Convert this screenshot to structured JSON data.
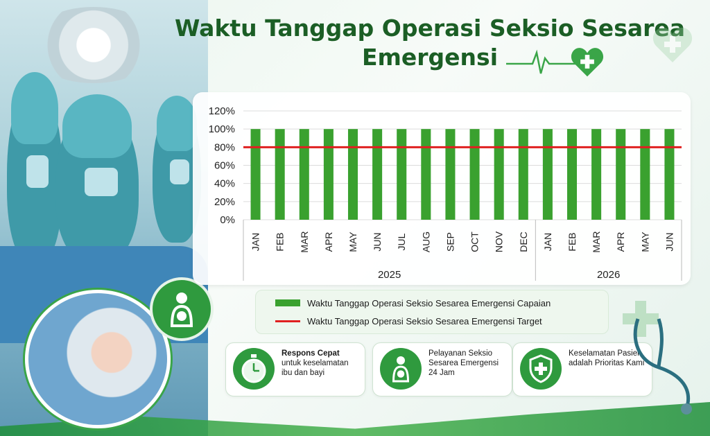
{
  "title": "Waktu Tanggap Operasi Seksio Sesarea Emergensi",
  "colors": {
    "bar": "#3aa12f",
    "target_line": "#e02020",
    "brand_green": "#2f9a3e",
    "title_green": "#1b5e25"
  },
  "icons": [
    "heart-plus-icon",
    "ekg-line-icon",
    "mother-baby-icon",
    "stopwatch-icon",
    "shield-cross-icon",
    "stethoscope-icon"
  ],
  "chart_data": {
    "type": "bar",
    "categories": [
      "JAN",
      "FEB",
      "MAR",
      "APR",
      "MAY",
      "JUN",
      "JUL",
      "AUG",
      "SEP",
      "OCT",
      "NOV",
      "DEC",
      "JAN",
      "FEB",
      "MAR",
      "APR",
      "MAY",
      "JUN"
    ],
    "year_groups": [
      {
        "label": "2025",
        "count": 12
      },
      {
        "label": "2026",
        "count": 6
      }
    ],
    "series": [
      {
        "name": "Waktu Tanggap Operasi Seksio Sesarea Emergensi Capaian",
        "type": "bar",
        "values": [
          100,
          100,
          100,
          100,
          100,
          100,
          100,
          100,
          100,
          100,
          100,
          100,
          100,
          100,
          100,
          100,
          100,
          100
        ]
      },
      {
        "name": "Waktu Tanggap Operasi Seksio Sesarea Emergensi Target",
        "type": "line",
        "values": [
          80,
          80,
          80,
          80,
          80,
          80,
          80,
          80,
          80,
          80,
          80,
          80,
          80,
          80,
          80,
          80,
          80,
          80
        ]
      }
    ],
    "ylim": [
      0,
      120
    ],
    "yticks": [
      "0%",
      "20%",
      "40%",
      "60%",
      "80%",
      "100%",
      "120%"
    ],
    "grid": true,
    "legend_position": "bottom"
  },
  "legend": {
    "bar_label": "Waktu Tanggap Operasi Seksio Sesarea Emergensi Capaian",
    "line_label": "Waktu Tanggap Operasi Seksio Sesarea Emergensi Target"
  },
  "cards": [
    {
      "title": "Respons Cepat",
      "body": "untuk keselamatan ibu dan bayi"
    },
    {
      "title": "Pelayanan Seksio Sesarea Emergensi 24 Jam",
      "body": ""
    },
    {
      "title": "Keselamatan Pasien adalah Prioritas Kami",
      "body": ""
    }
  ]
}
